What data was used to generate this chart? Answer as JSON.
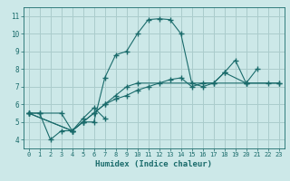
{
  "xlabel": "Humidex (Indice chaleur)",
  "xlim": [
    -0.5,
    23.5
  ],
  "ylim": [
    3.5,
    11.5
  ],
  "yticks": [
    4,
    5,
    6,
    7,
    8,
    9,
    10,
    11
  ],
  "xticks": [
    0,
    1,
    2,
    3,
    4,
    5,
    6,
    7,
    8,
    9,
    10,
    11,
    12,
    13,
    14,
    15,
    16,
    17,
    18,
    19,
    20,
    21,
    22,
    23
  ],
  "bg_color": "#cce8e8",
  "grid_color": "#aacccc",
  "line_color": "#1a6b6b",
  "line1_x": [
    0,
    1,
    2,
    3,
    4,
    5,
    6,
    7,
    8,
    9,
    10,
    11,
    12,
    13,
    14,
    15,
    16,
    17,
    18,
    19,
    20,
    21
  ],
  "line1_y": [
    5.5,
    5.5,
    4.0,
    4.5,
    4.5,
    5.0,
    5.0,
    7.5,
    8.8,
    9.0,
    10.0,
    10.8,
    10.85,
    10.8,
    10.0,
    7.2,
    7.0,
    7.2,
    7.8,
    8.5,
    7.2,
    8.0
  ],
  "line2_x": [
    0,
    1,
    3,
    4,
    5,
    6,
    7
  ],
  "line2_y": [
    5.5,
    5.5,
    5.5,
    4.5,
    5.2,
    5.8,
    5.2
  ],
  "line3_x": [
    0,
    4,
    5,
    6,
    7,
    8,
    9,
    10,
    20,
    23
  ],
  "line3_y": [
    5.5,
    4.5,
    5.0,
    5.5,
    6.0,
    6.5,
    7.0,
    7.2,
    7.2,
    7.2
  ],
  "line4_x": [
    0,
    4,
    5,
    6,
    7,
    8,
    9,
    10,
    11,
    12,
    13,
    14,
    15,
    16,
    17,
    18,
    20,
    22,
    23
  ],
  "line4_y": [
    5.5,
    4.5,
    5.0,
    5.5,
    6.0,
    6.3,
    6.5,
    6.8,
    7.0,
    7.2,
    7.4,
    7.5,
    7.0,
    7.2,
    7.2,
    7.8,
    7.2,
    7.2,
    7.2
  ]
}
